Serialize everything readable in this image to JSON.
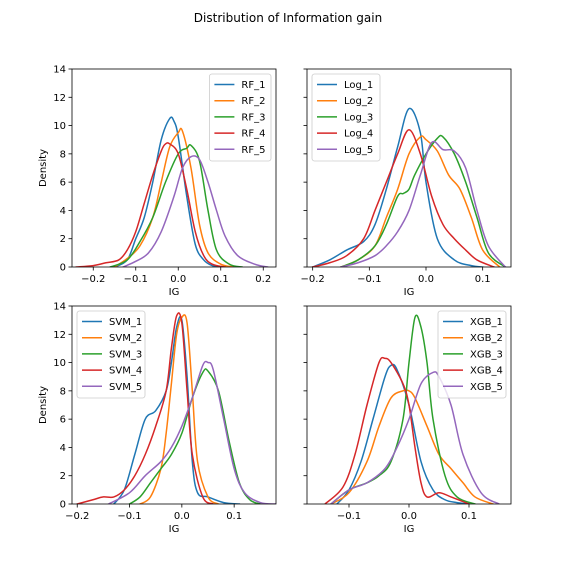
{
  "figure_title": "Distribution of Information gain",
  "chart_data": [
    {
      "type": "line",
      "panel": "top-left",
      "xlabel": "IG",
      "ylabel": "Density",
      "xlim": [
        -0.25,
        0.23
      ],
      "ylim": [
        0,
        14
      ],
      "xticks": [
        -0.2,
        -0.1,
        0.0,
        0.1,
        0.2
      ],
      "xtick_labels": [
        "−0.2",
        "−0.1",
        "0.0",
        "0.1",
        "0.2"
      ],
      "yticks": [
        0,
        2,
        4,
        6,
        8,
        10,
        12,
        14
      ],
      "ytick_labels": [
        "0",
        "2",
        "4",
        "6",
        "8",
        "10",
        "12",
        "14"
      ],
      "show_yticklabels": true,
      "legend_position": "top-right",
      "series": [
        {
          "name": "RF_1",
          "color": "#1f77b4",
          "x": [
            -0.15,
            -0.12,
            -0.1,
            -0.08,
            -0.06,
            -0.04,
            -0.02,
            -0.01,
            0.0,
            0.02,
            0.04,
            0.06,
            0.08,
            0.1
          ],
          "y": [
            0,
            0.5,
            2.0,
            3.5,
            6.0,
            9.0,
            10.5,
            10.3,
            9.2,
            5.0,
            1.6,
            0.5,
            0.1,
            0
          ]
        },
        {
          "name": "RF_2",
          "color": "#ff7f0e",
          "x": [
            -0.15,
            -0.12,
            -0.09,
            -0.06,
            -0.04,
            -0.02,
            0.0,
            0.01,
            0.03,
            0.05,
            0.07,
            0.1,
            0.13
          ],
          "y": [
            0,
            0.6,
            1.5,
            3.5,
            6.0,
            8.5,
            9.5,
            9.6,
            7.0,
            3.0,
            1.0,
            0.2,
            0
          ]
        },
        {
          "name": "RF_3",
          "color": "#2ca02c",
          "x": [
            -0.16,
            -0.12,
            -0.09,
            -0.06,
            -0.03,
            0.0,
            0.02,
            0.03,
            0.05,
            0.07,
            0.09,
            0.12,
            0.15
          ],
          "y": [
            0,
            0.5,
            1.8,
            3.5,
            6.0,
            8.0,
            8.4,
            8.6,
            7.5,
            4.0,
            1.2,
            0.2,
            0
          ]
        },
        {
          "name": "RF_4",
          "color": "#d62728",
          "x": [
            -0.24,
            -0.2,
            -0.17,
            -0.14,
            -0.12,
            -0.1,
            -0.08,
            -0.06,
            -0.04,
            -0.03,
            -0.02,
            0.0,
            0.02,
            0.04,
            0.06,
            0.08,
            0.11
          ],
          "y": [
            0,
            0.1,
            0.3,
            0.5,
            1.2,
            2.5,
            4.5,
            6.5,
            8.2,
            8.7,
            8.7,
            8.0,
            5.5,
            2.5,
            0.8,
            0.2,
            0
          ]
        },
        {
          "name": "RF_5",
          "color": "#9467bd",
          "x": [
            -0.13,
            -0.1,
            -0.07,
            -0.04,
            -0.01,
            0.01,
            0.03,
            0.05,
            0.07,
            0.09,
            0.11,
            0.14,
            0.18,
            0.21
          ],
          "y": [
            0,
            0.4,
            1.0,
            2.5,
            5.0,
            7.0,
            7.8,
            7.6,
            6.0,
            4.0,
            2.2,
            0.8,
            0.2,
            0
          ]
        }
      ]
    },
    {
      "type": "line",
      "panel": "top-right",
      "xlabel": "IG",
      "ylabel": "",
      "xlim": [
        -0.21,
        0.15
      ],
      "ylim": [
        0,
        14
      ],
      "xticks": [
        -0.2,
        -0.1,
        0.0,
        0.1
      ],
      "xtick_labels": [
        "−0.2",
        "−0.1",
        "0.0",
        "0.1"
      ],
      "yticks": [
        0,
        2,
        4,
        6,
        8,
        10,
        12,
        14
      ],
      "ytick_labels": [],
      "show_yticklabels": false,
      "legend_position": "top-left",
      "series": [
        {
          "name": "Log_1",
          "color": "#1f77b4",
          "x": [
            -0.2,
            -0.17,
            -0.14,
            -0.11,
            -0.09,
            -0.07,
            -0.05,
            -0.03,
            -0.01,
            0.0,
            0.02,
            0.05,
            0.08,
            0.1
          ],
          "y": [
            0,
            0.5,
            1.2,
            1.8,
            3.0,
            5.5,
            8.5,
            11.2,
            9.5,
            6.0,
            2.0,
            0.5,
            0.1,
            0
          ]
        },
        {
          "name": "Log_2",
          "color": "#ff7f0e",
          "x": [
            -0.15,
            -0.12,
            -0.09,
            -0.07,
            -0.05,
            -0.03,
            -0.01,
            0.0,
            0.02,
            0.04,
            0.06,
            0.08,
            0.1,
            0.13
          ],
          "y": [
            0,
            0.5,
            1.5,
            3.5,
            5.5,
            8.0,
            9.2,
            9.0,
            8.2,
            6.5,
            5.5,
            3.5,
            1.2,
            0
          ]
        },
        {
          "name": "Log_3",
          "color": "#2ca02c",
          "x": [
            -0.15,
            -0.12,
            -0.09,
            -0.07,
            -0.05,
            -0.04,
            -0.03,
            -0.02,
            0.0,
            0.02,
            0.03,
            0.05,
            0.07,
            0.09,
            0.11,
            0.14
          ],
          "y": [
            0,
            0.5,
            1.5,
            3.0,
            5.0,
            5.2,
            5.5,
            6.5,
            8.0,
            9.1,
            9.2,
            8.0,
            6.0,
            3.5,
            1.0,
            0
          ]
        },
        {
          "name": "Log_4",
          "color": "#d62728",
          "x": [
            -0.2,
            -0.17,
            -0.14,
            -0.11,
            -0.09,
            -0.07,
            -0.05,
            -0.03,
            -0.01,
            0.01,
            0.03,
            0.05,
            0.07,
            0.09,
            0.12
          ],
          "y": [
            0,
            0.3,
            0.8,
            2.0,
            4.0,
            6.0,
            8.0,
            9.7,
            8.0,
            5.0,
            3.0,
            2.0,
            1.2,
            0.5,
            0
          ]
        },
        {
          "name": "Log_5",
          "color": "#9467bd",
          "x": [
            -0.15,
            -0.12,
            -0.09,
            -0.07,
            -0.05,
            -0.03,
            -0.01,
            0.01,
            0.03,
            0.05,
            0.07,
            0.09,
            0.11,
            0.14
          ],
          "y": [
            0,
            0.3,
            0.8,
            1.5,
            2.5,
            4.0,
            6.5,
            8.8,
            8.3,
            8.2,
            7.0,
            4.0,
            1.5,
            0
          ]
        }
      ]
    },
    {
      "type": "line",
      "panel": "bottom-left",
      "xlabel": "IG",
      "ylabel": "Density",
      "xlim": [
        -0.21,
        0.18
      ],
      "ylim": [
        0,
        14
      ],
      "xticks": [
        -0.2,
        -0.1,
        0.0,
        0.1
      ],
      "xtick_labels": [
        "−0.2",
        "−0.1",
        "0.0",
        "0.1"
      ],
      "yticks": [
        0,
        2,
        4,
        6,
        8,
        10,
        12,
        14
      ],
      "ytick_labels": [
        "0",
        "2",
        "4",
        "6",
        "8",
        "10",
        "12",
        "14"
      ],
      "show_yticklabels": true,
      "legend_position": "top-left",
      "series": [
        {
          "name": "SVM_1",
          "color": "#1f77b4",
          "x": [
            -0.13,
            -0.11,
            -0.09,
            -0.07,
            -0.05,
            -0.03,
            -0.02,
            -0.01,
            0.0,
            0.01,
            0.02,
            0.03,
            0.05,
            0.08,
            0.11
          ],
          "y": [
            0,
            1.0,
            3.5,
            6.0,
            6.6,
            8.0,
            10.0,
            12.5,
            13.0,
            9.0,
            3.0,
            0.8,
            0.5,
            0.1,
            0
          ]
        },
        {
          "name": "SVM_2",
          "color": "#ff7f0e",
          "x": [
            -0.08,
            -0.06,
            -0.04,
            -0.03,
            -0.02,
            -0.01,
            0.0,
            0.01,
            0.02,
            0.03,
            0.05,
            0.07
          ],
          "y": [
            0,
            0.5,
            2.5,
            5.0,
            8.5,
            12.0,
            13.2,
            12.8,
            8.0,
            3.0,
            0.5,
            0
          ]
        },
        {
          "name": "SVM_3",
          "color": "#2ca02c",
          "x": [
            -0.1,
            -0.08,
            -0.06,
            -0.04,
            -0.02,
            0.0,
            0.02,
            0.04,
            0.05,
            0.07,
            0.09,
            0.11,
            0.13,
            0.15
          ],
          "y": [
            0,
            0.5,
            1.5,
            2.5,
            3.5,
            5.0,
            7.5,
            9.3,
            9.4,
            8.0,
            4.5,
            1.5,
            0.3,
            0
          ]
        },
        {
          "name": "SVM_4",
          "color": "#d62728",
          "x": [
            -0.2,
            -0.17,
            -0.15,
            -0.13,
            -0.11,
            -0.09,
            -0.07,
            -0.05,
            -0.03,
            -0.02,
            -0.01,
            0.0,
            0.01,
            0.02,
            0.04,
            0.06
          ],
          "y": [
            0,
            0.3,
            0.5,
            0.5,
            1.0,
            2.0,
            3.5,
            5.5,
            8.0,
            11.0,
            13.3,
            12.8,
            8.0,
            3.5,
            0.5,
            0
          ]
        },
        {
          "name": "SVM_5",
          "color": "#9467bd",
          "x": [
            -0.14,
            -0.1,
            -0.07,
            -0.04,
            -0.02,
            0.0,
            0.02,
            0.04,
            0.05,
            0.06,
            0.08,
            0.1,
            0.12,
            0.15,
            0.18
          ],
          "y": [
            0,
            0.8,
            2.0,
            3.0,
            4.0,
            5.5,
            7.5,
            9.8,
            10.0,
            9.5,
            6.0,
            2.5,
            0.8,
            0.1,
            0
          ]
        }
      ]
    },
    {
      "type": "line",
      "panel": "bottom-right",
      "xlabel": "IG",
      "ylabel": "",
      "xlim": [
        -0.17,
        0.17
      ],
      "ylim": [
        0,
        14
      ],
      "xticks": [
        -0.1,
        0.0,
        0.1
      ],
      "xtick_labels": [
        "−0.1",
        "0.0",
        "0.1"
      ],
      "yticks": [
        0,
        2,
        4,
        6,
        8,
        10,
        12,
        14
      ],
      "ytick_labels": [],
      "show_yticklabels": false,
      "legend_position": "top-right",
      "series": [
        {
          "name": "XGB_1",
          "color": "#1f77b4",
          "x": [
            -0.12,
            -0.1,
            -0.08,
            -0.06,
            -0.04,
            -0.03,
            -0.02,
            0.0,
            0.02,
            0.04,
            0.06,
            0.08,
            0.1
          ],
          "y": [
            0,
            1.0,
            3.0,
            6.0,
            9.0,
            9.8,
            9.5,
            7.0,
            3.0,
            1.0,
            0.3,
            0.1,
            0
          ]
        },
        {
          "name": "XGB_2",
          "color": "#ff7f0e",
          "x": [
            -0.13,
            -0.1,
            -0.07,
            -0.05,
            -0.03,
            -0.01,
            0.0,
            0.01,
            0.03,
            0.05,
            0.07,
            0.09,
            0.11,
            0.14
          ],
          "y": [
            0,
            0.8,
            3.0,
            5.5,
            7.5,
            8.0,
            8.0,
            7.5,
            5.5,
            3.5,
            2.5,
            1.5,
            0.5,
            0
          ]
        },
        {
          "name": "XGB_3",
          "color": "#2ca02c",
          "x": [
            -0.13,
            -0.1,
            -0.07,
            -0.05,
            -0.03,
            -0.01,
            0.0,
            0.01,
            0.02,
            0.03,
            0.04,
            0.06,
            0.08,
            0.11
          ],
          "y": [
            0,
            1.0,
            1.5,
            2.0,
            3.0,
            6.0,
            10.0,
            13.2,
            12.5,
            10.0,
            6.0,
            2.0,
            0.5,
            0
          ]
        },
        {
          "name": "XGB_4",
          "color": "#d62728",
          "x": [
            -0.14,
            -0.11,
            -0.09,
            -0.07,
            -0.05,
            -0.04,
            -0.03,
            -0.01,
            0.0,
            0.01,
            0.02,
            0.03,
            0.05,
            0.07,
            0.1
          ],
          "y": [
            0,
            1.2,
            3.5,
            7.0,
            10.0,
            10.3,
            10.0,
            8.5,
            7.0,
            4.0,
            1.5,
            0.5,
            0.8,
            0.5,
            0
          ]
        },
        {
          "name": "XGB_5",
          "color": "#9467bd",
          "x": [
            -0.13,
            -0.1,
            -0.07,
            -0.04,
            -0.02,
            0.0,
            0.02,
            0.04,
            0.05,
            0.07,
            0.09,
            0.12,
            0.15
          ],
          "y": [
            0,
            1.0,
            1.5,
            2.5,
            4.0,
            6.0,
            8.5,
            9.3,
            9.0,
            7.0,
            3.5,
            0.8,
            0
          ]
        }
      ]
    }
  ]
}
